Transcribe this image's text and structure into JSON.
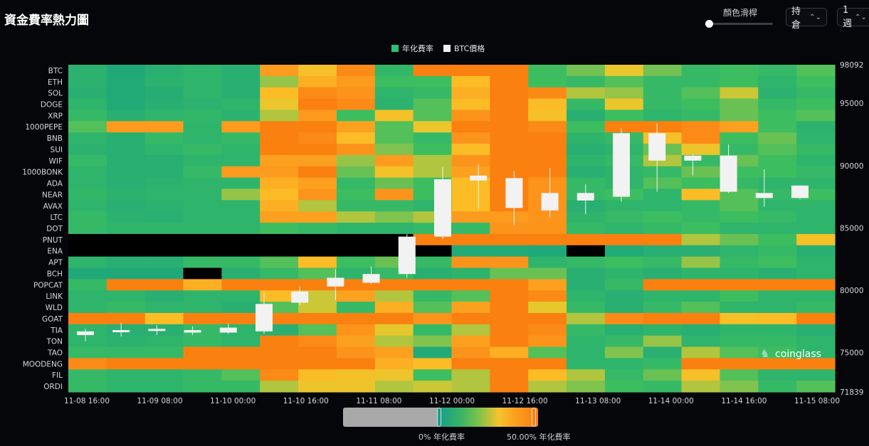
{
  "header": {
    "title": "資金費率熱力圖",
    "color_slider_label": "顏色滑桿",
    "type_select": "持倉",
    "period_select": "1週"
  },
  "legend": [
    {
      "label": "年化費率",
      "color": "#2fbf71"
    },
    {
      "label": "BTC價格",
      "color": "#f2f2f2"
    }
  ],
  "watermark": "coinglass",
  "color_scale": {
    "low_label": "0% 年化費率",
    "high_label": "50.00% 年化費率",
    "low_color": "#1aa08a",
    "high_color": "#fa8010"
  },
  "chart_data": {
    "type": "heatmap",
    "title": "資金費率熱力圖",
    "rows": [
      "BTC",
      "ETH",
      "SOL",
      "DOGE",
      "XRP",
      "1000PEPE",
      "BNB",
      "SUI",
      "WIF",
      "1000BONK",
      "ADA",
      "NEAR",
      "AVAX",
      "LTC",
      "DOT",
      "PNUT",
      "ENA",
      "APT",
      "BCH",
      "POPCAT",
      "LINK",
      "WLD",
      "GOAT",
      "TIA",
      "TON",
      "TAO",
      "MOODENG",
      "FIL",
      "ORDI"
    ],
    "x_tick_labels": [
      "11-08 16:00",
      "11-09 08:00",
      "11-10 00:00",
      "11-10 16:00",
      "11-11 08:00",
      "11-12 00:00",
      "11-12 16:00",
      "11-13 08:00",
      "11-14 00:00",
      "11-14 16:00",
      "11-15 08:00"
    ],
    "y2_tick_labels": [
      "98092",
      "95000",
      "90000",
      "85000",
      "80000",
      "75000",
      "71839"
    ],
    "y2_range": [
      71839,
      98092
    ],
    "value_unit": "annualized funding rate (% per year, color scale 0–50)",
    "heat_values": [
      [
        15,
        10,
        14,
        16,
        14,
        45,
        38,
        48,
        17,
        50,
        50,
        50,
        20,
        25,
        35,
        25,
        18,
        20,
        18,
        22
      ],
      [
        15,
        12,
        15,
        16,
        14,
        28,
        42,
        45,
        20,
        20,
        40,
        50,
        20,
        18,
        22,
        18,
        18,
        20,
        16,
        20
      ],
      [
        14,
        12,
        13,
        16,
        14,
        40,
        48,
        46,
        16,
        18,
        42,
        50,
        48,
        30,
        28,
        18,
        22,
        32,
        15,
        18
      ],
      [
        16,
        12,
        14,
        15,
        16,
        35,
        50,
        48,
        15,
        22,
        40,
        50,
        40,
        18,
        35,
        18,
        20,
        24,
        18,
        20
      ],
      [
        18,
        14,
        16,
        17,
        15,
        30,
        45,
        20,
        38,
        22,
        46,
        50,
        38,
        14,
        20,
        16,
        18,
        24,
        20,
        22
      ],
      [
        22,
        45,
        45,
        16,
        45,
        50,
        50,
        44,
        22,
        35,
        50,
        50,
        48,
        20,
        50,
        50,
        48,
        44,
        20,
        15
      ],
      [
        16,
        14,
        18,
        16,
        18,
        50,
        48,
        40,
        22,
        18,
        46,
        50,
        50,
        16,
        18,
        38,
        48,
        20,
        24,
        16
      ],
      [
        15,
        14,
        16,
        18,
        16,
        50,
        50,
        46,
        26,
        20,
        40,
        50,
        50,
        14,
        16,
        24,
        36,
        18,
        22,
        18
      ],
      [
        18,
        14,
        14,
        16,
        16,
        44,
        44,
        28,
        45,
        30,
        46,
        50,
        50,
        16,
        18,
        30,
        18,
        24,
        20,
        16
      ],
      [
        16,
        14,
        14,
        18,
        45,
        45,
        50,
        24,
        38,
        30,
        44,
        50,
        50,
        14,
        16,
        18,
        24,
        20,
        20,
        18
      ],
      [
        16,
        14,
        15,
        16,
        16,
        42,
        44,
        18,
        24,
        20,
        40,
        50,
        46,
        18,
        16,
        22,
        20,
        18,
        16,
        16
      ],
      [
        17,
        15,
        16,
        16,
        28,
        40,
        46,
        20,
        46,
        20,
        40,
        50,
        46,
        18,
        20,
        16,
        40,
        22,
        18,
        20
      ],
      [
        16,
        14,
        15,
        16,
        16,
        42,
        30,
        18,
        18,
        16,
        40,
        50,
        46,
        14,
        16,
        16,
        18,
        22,
        16,
        16
      ],
      [
        18,
        15,
        14,
        16,
        16,
        44,
        44,
        30,
        26,
        30,
        45,
        45,
        46,
        16,
        18,
        20,
        18,
        20,
        18,
        16
      ],
      [
        18,
        16,
        16,
        16,
        16,
        20,
        18,
        16,
        16,
        18,
        18,
        46,
        46,
        18,
        16,
        18,
        20,
        16,
        16,
        16
      ],
      [
        null,
        null,
        null,
        null,
        null,
        null,
        null,
        null,
        null,
        50,
        50,
        50,
        50,
        50,
        50,
        50,
        30,
        24,
        20,
        38
      ],
      [
        null,
        null,
        null,
        null,
        null,
        null,
        null,
        null,
        null,
        null,
        12,
        12,
        10,
        null,
        12,
        14,
        14,
        16,
        18,
        14
      ],
      [
        16,
        14,
        14,
        18,
        18,
        22,
        40,
        20,
        24,
        18,
        46,
        46,
        16,
        18,
        20,
        18,
        28,
        18,
        20,
        16
      ],
      [
        10,
        10,
        10,
        null,
        14,
        18,
        22,
        16,
        18,
        14,
        16,
        24,
        24,
        14,
        16,
        14,
        16,
        16,
        14,
        16
      ],
      [
        18,
        50,
        50,
        42,
        50,
        50,
        50,
        50,
        50,
        50,
        50,
        50,
        44,
        14,
        18,
        50,
        50,
        50,
        50,
        50
      ],
      [
        16,
        16,
        14,
        16,
        16,
        40,
        32,
        44,
        30,
        18,
        22,
        50,
        48,
        16,
        14,
        16,
        16,
        20,
        16,
        16
      ],
      [
        16,
        18,
        16,
        16,
        14,
        22,
        32,
        18,
        42,
        22,
        44,
        50,
        34,
        18,
        14,
        18,
        22,
        16,
        16,
        18
      ],
      [
        50,
        50,
        40,
        50,
        50,
        50,
        50,
        50,
        50,
        46,
        50,
        50,
        50,
        30,
        48,
        50,
        50,
        38,
        40,
        50
      ],
      [
        16,
        14,
        14,
        18,
        16,
        14,
        22,
        46,
        34,
        18,
        30,
        50,
        48,
        18,
        14,
        16,
        14,
        16,
        16,
        14
      ],
      [
        16,
        15,
        16,
        18,
        16,
        50,
        48,
        44,
        30,
        26,
        44,
        50,
        46,
        16,
        18,
        28,
        16,
        18,
        18,
        16
      ],
      [
        18,
        18,
        18,
        50,
        50,
        50,
        50,
        46,
        44,
        12,
        46,
        42,
        22,
        16,
        26,
        14,
        30,
        22,
        20,
        16
      ],
      [
        48,
        50,
        50,
        50,
        50,
        50,
        50,
        50,
        42,
        40,
        50,
        50,
        50,
        16,
        16,
        18,
        50,
        50,
        50,
        50
      ],
      [
        18,
        16,
        16,
        18,
        22,
        48,
        40,
        38,
        36,
        20,
        30,
        50,
        40,
        30,
        18,
        24,
        38,
        22,
        16,
        16
      ],
      [
        18,
        16,
        16,
        18,
        18,
        30,
        36,
        36,
        30,
        32,
        30,
        50,
        30,
        26,
        20,
        18,
        30,
        26,
        18,
        22
      ]
    ],
    "btc_candles": [
      {
        "open": 76400,
        "close": 76700,
        "high": 76900,
        "low": 75900
      },
      {
        "open": 76700,
        "close": 76800,
        "high": 77400,
        "low": 76300
      },
      {
        "open": 76800,
        "close": 76900,
        "high": 77200,
        "low": 76400
      },
      {
        "open": 76600,
        "close": 76800,
        "high": 77100,
        "low": 76400
      },
      {
        "open": 76600,
        "close": 77000,
        "high": 77300,
        "low": 76500
      },
      {
        "open": 76700,
        "close": 78900,
        "high": 79800,
        "low": 76500
      },
      {
        "open": 79000,
        "close": 79900,
        "high": 80300,
        "low": 78800
      },
      {
        "open": 80300,
        "close": 81000,
        "high": 81700,
        "low": 79200
      },
      {
        "open": 80600,
        "close": 81300,
        "high": 81900,
        "low": 80500
      },
      {
        "open": 81300,
        "close": 84300,
        "high": 84500,
        "low": 81000
      },
      {
        "open": 84300,
        "close": 88900,
        "high": 89900,
        "low": 84100
      },
      {
        "open": 88800,
        "close": 89200,
        "high": 90100,
        "low": 86500
      },
      {
        "open": 86600,
        "close": 89000,
        "high": 89600,
        "low": 85200
      },
      {
        "open": 86400,
        "close": 87800,
        "high": 89800,
        "low": 85800
      },
      {
        "open": 87200,
        "close": 87800,
        "high": 88500,
        "low": 86100
      },
      {
        "open": 87500,
        "close": 92600,
        "high": 93000,
        "low": 87100
      },
      {
        "open": 92600,
        "close": 90400,
        "high": 93400,
        "low": 87900
      },
      {
        "open": 90800,
        "close": 90400,
        "high": 90900,
        "low": 89200
      },
      {
        "open": 90800,
        "close": 87900,
        "high": 91700,
        "low": 87800
      },
      {
        "open": 87400,
        "close": 87800,
        "high": 89700,
        "low": 86700
      },
      {
        "open": 87400,
        "close": 88400,
        "high": 88400,
        "low": 87300
      }
    ]
  }
}
